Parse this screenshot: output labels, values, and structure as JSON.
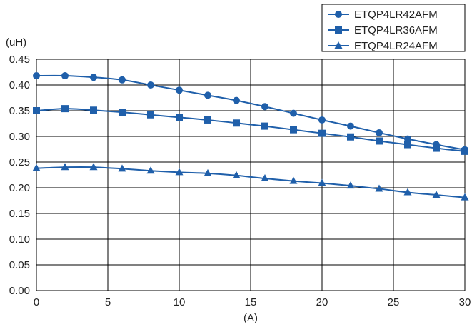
{
  "chart_data": {
    "type": "line",
    "xlabel": "(A)",
    "ylabel": "(uH)",
    "xlim": [
      0,
      30
    ],
    "ylim": [
      0,
      0.45
    ],
    "x_ticks": [
      "0",
      "5",
      "10",
      "15",
      "20",
      "25",
      "30"
    ],
    "y_ticks": [
      "0.00",
      "0.05",
      "0.10",
      "0.15",
      "0.20",
      "0.25",
      "0.30",
      "0.35",
      "0.40",
      "0.45"
    ],
    "grid": true,
    "legend_position": "top-right",
    "colors": {
      "series": "#1f5faa",
      "grid": "#000000",
      "text": "#222222"
    },
    "x": [
      0,
      2,
      4,
      6,
      8,
      10,
      12,
      14,
      16,
      18,
      20,
      22,
      24,
      26,
      28,
      30
    ],
    "series": [
      {
        "name": "ETQP4LR42AFM",
        "marker": "circle",
        "values": [
          0.418,
          0.418,
          0.415,
          0.41,
          0.4,
          0.39,
          0.38,
          0.37,
          0.358,
          0.345,
          0.332,
          0.32,
          0.307,
          0.295,
          0.284,
          0.274
        ]
      },
      {
        "name": "ETQP4LR36AFM",
        "marker": "square",
        "values": [
          0.35,
          0.354,
          0.351,
          0.347,
          0.342,
          0.337,
          0.332,
          0.326,
          0.32,
          0.313,
          0.306,
          0.299,
          0.291,
          0.284,
          0.277,
          0.271
        ]
      },
      {
        "name": "ETQP4LR24AFM",
        "marker": "triangle",
        "values": [
          0.238,
          0.24,
          0.24,
          0.237,
          0.233,
          0.23,
          0.228,
          0.224,
          0.218,
          0.213,
          0.209,
          0.204,
          0.198,
          0.191,
          0.186,
          0.181
        ]
      }
    ]
  }
}
